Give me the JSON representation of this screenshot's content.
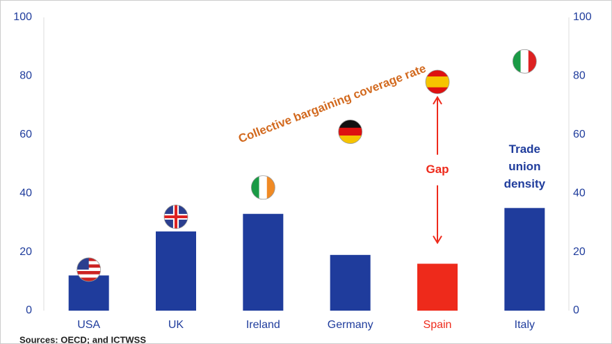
{
  "chart_data": {
    "type": "bar",
    "categories": [
      "USA",
      "UK",
      "Ireland",
      "Germany",
      "Spain",
      "Italy"
    ],
    "series": [
      {
        "name": "Trade union density",
        "type": "bar",
        "color": "#1f3c9c",
        "highlight_index": 4,
        "highlight_color": "#ee2a1b",
        "values": [
          12,
          27,
          33,
          19,
          16,
          35
        ]
      },
      {
        "name": "Collective bargaining coverage rate",
        "type": "marker",
        "color": "#d2691e",
        "values": [
          14,
          32,
          42,
          61,
          78,
          85
        ]
      }
    ],
    "annotations": [
      "Gap"
    ],
    "source": "Sources: OECD; and ICTWSS",
    "ylim": [
      0,
      100
    ],
    "yticks": [
      0,
      20,
      40,
      60,
      80,
      100
    ],
    "y2lim": [
      0,
      100
    ],
    "y2ticks": [
      0,
      20,
      40,
      60,
      80,
      100
    ]
  }
}
